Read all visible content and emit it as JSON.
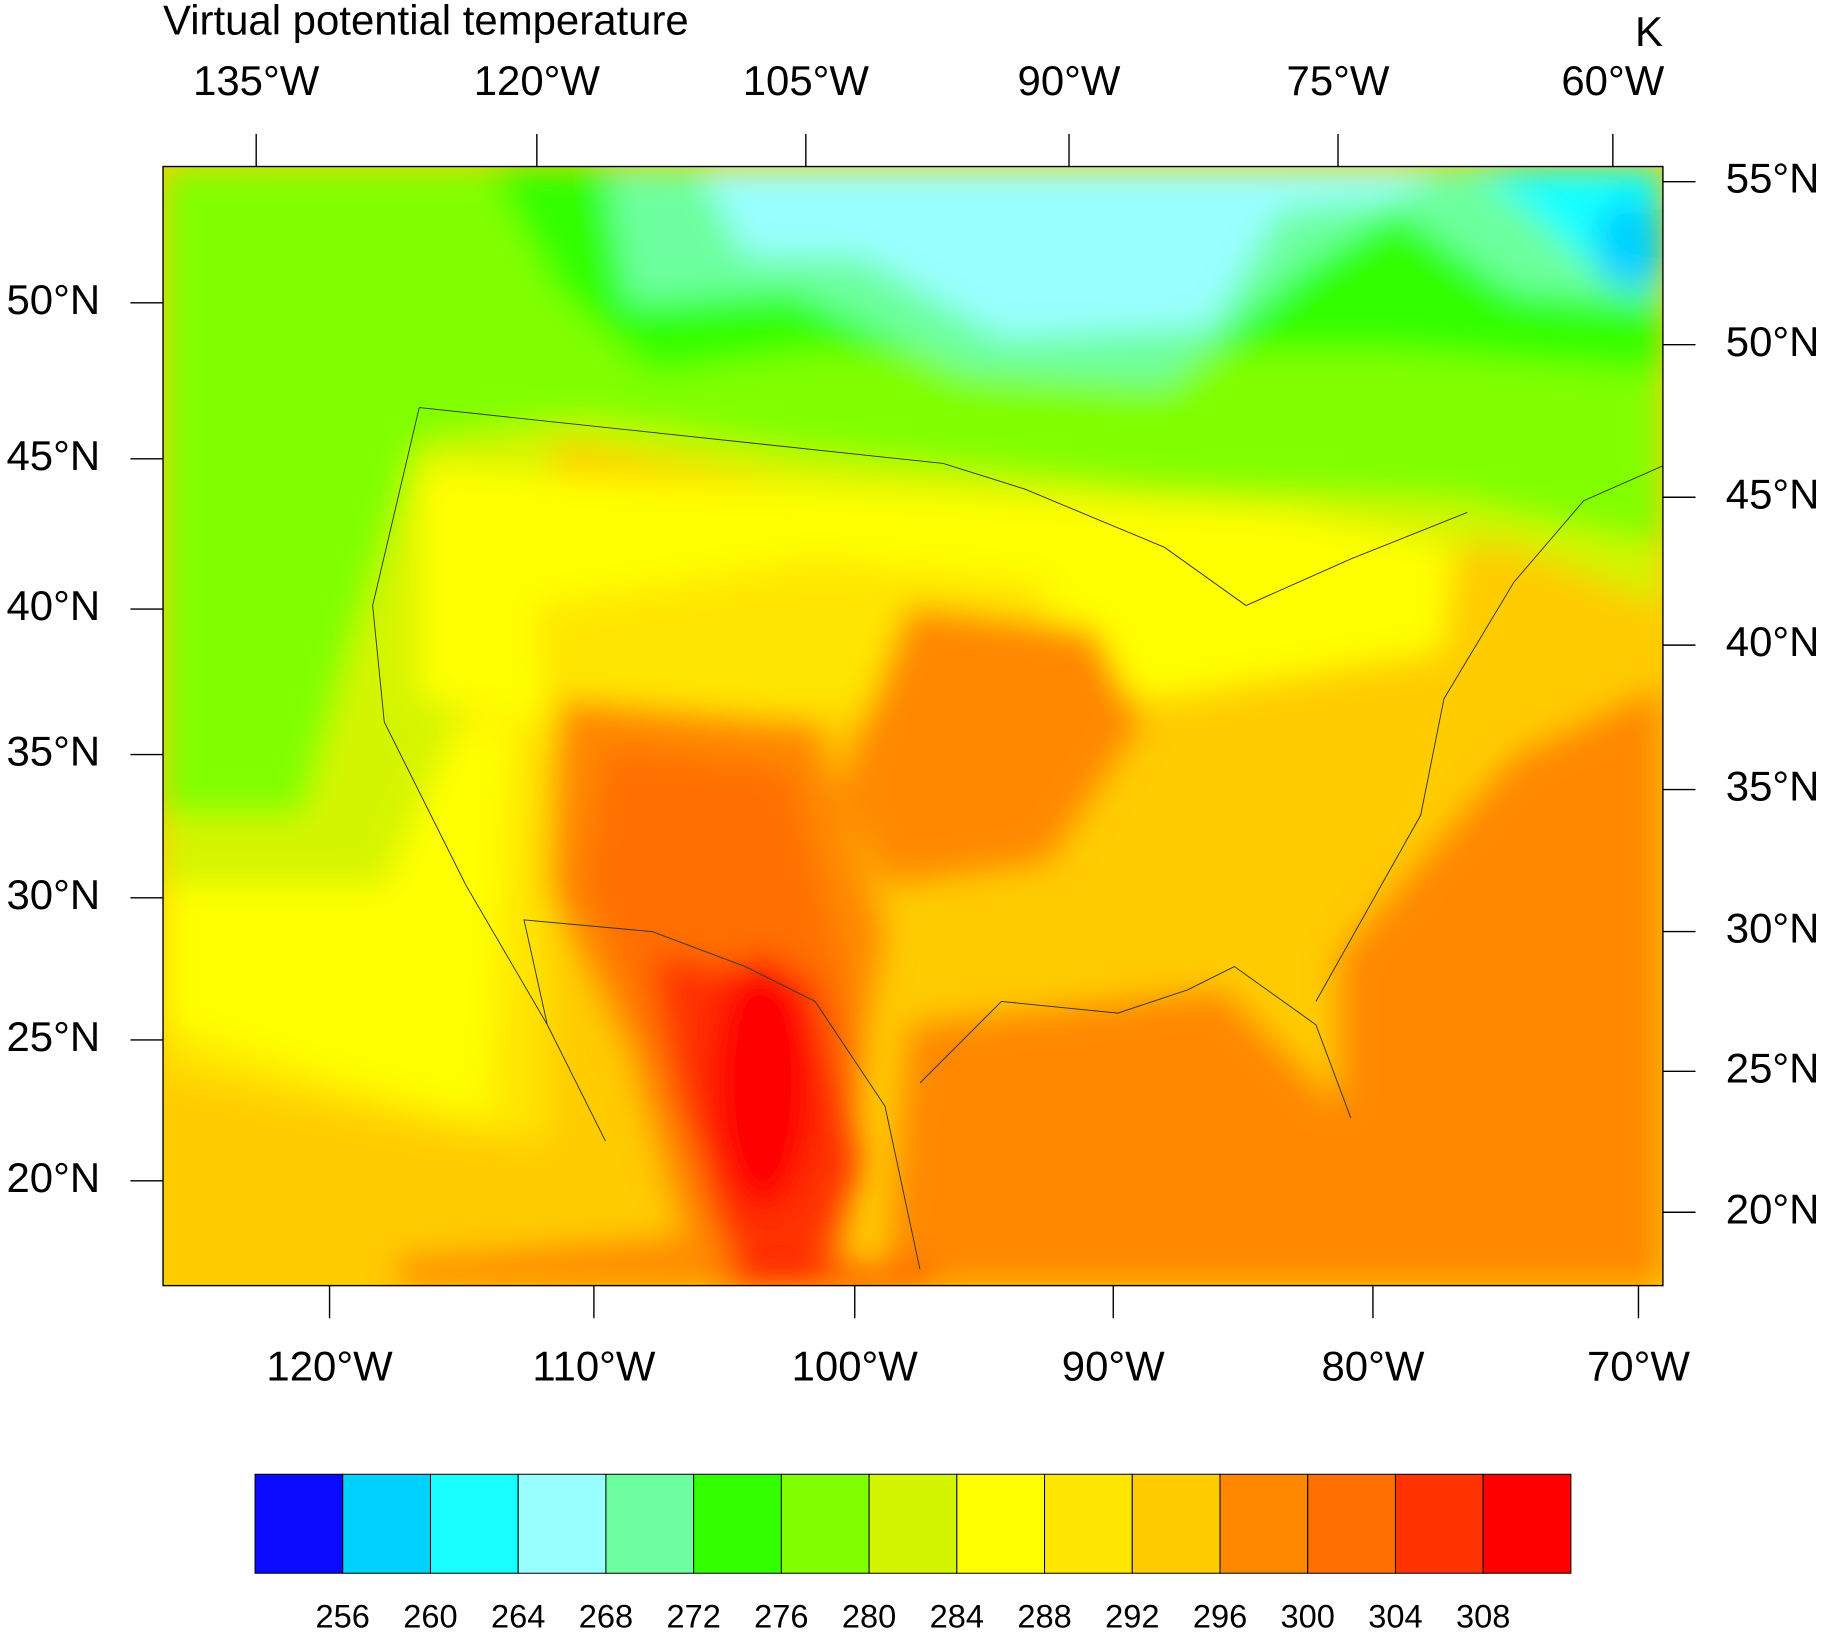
{
  "title": "Virtual potential temperature",
  "units": "K",
  "top_axis": [
    "135°W",
    "120°W",
    "105°W",
    "90°W",
    "75°W",
    "60°W"
  ],
  "bottom_axis": [
    "120°W",
    "110°W",
    "100°W",
    "90°W",
    "80°W",
    "70°W"
  ],
  "left_axis": [
    "50°N",
    "45°N",
    "40°N",
    "35°N",
    "30°N",
    "25°N",
    "20°N"
  ],
  "right_axis": [
    "55°N",
    "50°N",
    "45°N",
    "40°N",
    "35°N",
    "30°N",
    "25°N",
    "20°N"
  ],
  "colorbar": {
    "colors": [
      "#0a0aff",
      "#00d2ff",
      "#19ffff",
      "#99ffff",
      "#6dff9f",
      "#33ff00",
      "#80ff00",
      "#d4f500",
      "#ffff00",
      "#ffe600",
      "#ffcc00",
      "#ff8800",
      "#ff7000",
      "#ff3300",
      "#ff0000"
    ],
    "labels": [
      256,
      260,
      264,
      268,
      272,
      276,
      280,
      284,
      288,
      292,
      296,
      300,
      304,
      308
    ]
  }
}
